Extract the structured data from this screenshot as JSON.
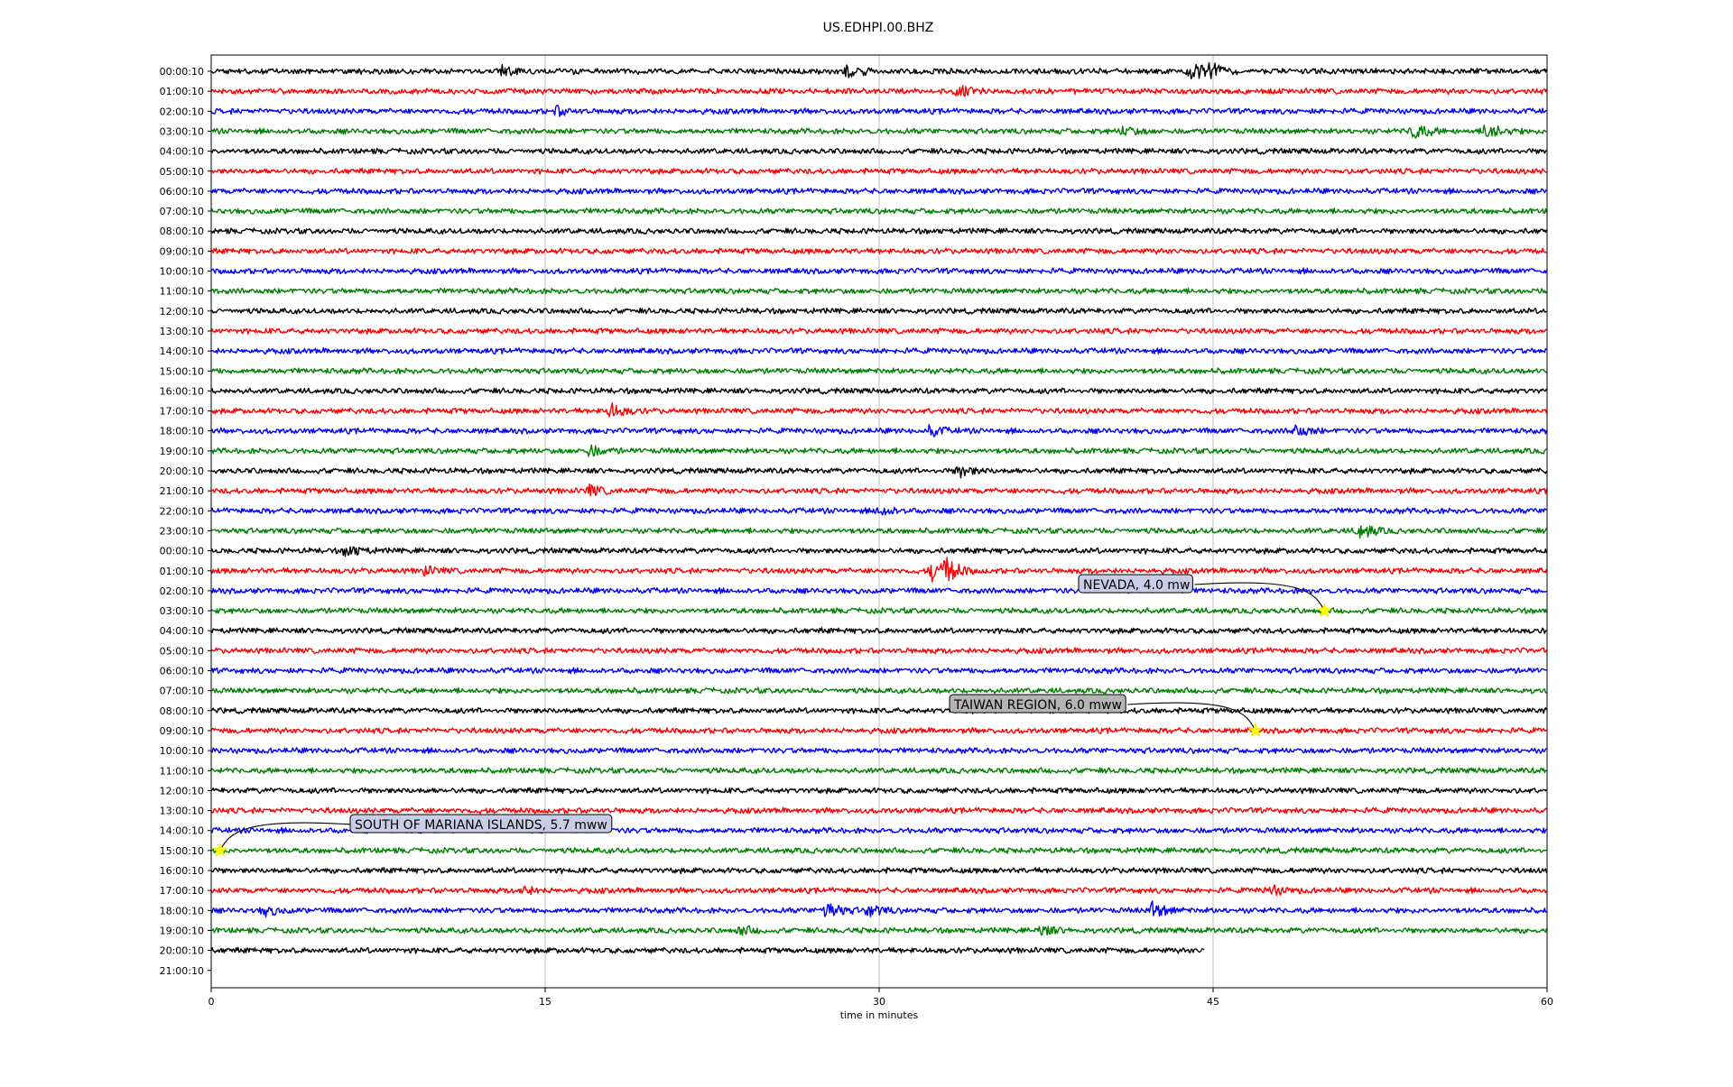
{
  "chart_data": {
    "type": "line",
    "title": "US.EDHPI.00.BHZ",
    "xlabel": "time in minutes",
    "ylabel": "",
    "xlim": [
      0,
      60
    ],
    "x_ticks": [
      0,
      15,
      30,
      45,
      60
    ],
    "grid": "vertical",
    "trace_colors": [
      "#000000",
      "#ff0000",
      "#0000ff",
      "#008000"
    ],
    "row_labels": [
      "00:00:10",
      "01:00:10",
      "02:00:10",
      "03:00:10",
      "04:00:10",
      "05:00:10",
      "06:00:10",
      "07:00:10",
      "08:00:10",
      "09:00:10",
      "10:00:10",
      "11:00:10",
      "12:00:10",
      "13:00:10",
      "14:00:10",
      "15:00:10",
      "16:00:10",
      "17:00:10",
      "18:00:10",
      "19:00:10",
      "20:00:10",
      "21:00:10",
      "22:00:10",
      "23:00:10",
      "00:00:10",
      "01:00:10",
      "02:00:10",
      "03:00:10",
      "04:00:10",
      "05:00:10",
      "06:00:10",
      "07:00:10",
      "08:00:10",
      "09:00:10",
      "10:00:10",
      "11:00:10",
      "12:00:10",
      "13:00:10",
      "14:00:10",
      "15:00:10",
      "16:00:10",
      "17:00:10",
      "18:00:10",
      "19:00:10",
      "20:00:10",
      "21:00:10"
    ],
    "last_trace_end_minute": 44.6,
    "events": [
      {
        "label": "NEVADA, 4.0 mw",
        "row": 27,
        "minute": 50.0
      },
      {
        "label": "TAIWAN REGION, 6.0 mww",
        "row": 33,
        "minute": 46.9
      },
      {
        "label": "SOUTH OF MARIANA ISLANDS, 5.7 mww",
        "row": 39,
        "minute": 0.4
      }
    ],
    "annotation_box_colors": [
      "#c8cde6",
      "#b4b4b4",
      "#c8cde6"
    ],
    "marker_color": "#ffff00",
    "bursts": [
      {
        "row": 0,
        "minute": 28.6,
        "amp": 0.7
      },
      {
        "row": 0,
        "minute": 44.0,
        "amp": 1.0
      },
      {
        "row": 0,
        "minute": 44.9,
        "amp": 0.8
      },
      {
        "row": 0,
        "minute": 13.0,
        "amp": 0.5
      },
      {
        "row": 1,
        "minute": 33.5,
        "amp": 0.5
      },
      {
        "row": 2,
        "minute": 15.5,
        "amp": 0.4
      },
      {
        "row": 3,
        "minute": 41.0,
        "amp": 0.5
      },
      {
        "row": 3,
        "minute": 54.0,
        "amp": 0.9
      },
      {
        "row": 3,
        "minute": 57.3,
        "amp": 1.0
      },
      {
        "row": 17,
        "minute": 17.9,
        "amp": 0.8
      },
      {
        "row": 18,
        "minute": 32.3,
        "amp": 0.5
      },
      {
        "row": 18,
        "minute": 48.7,
        "amp": 0.6
      },
      {
        "row": 19,
        "minute": 17.0,
        "amp": 0.5
      },
      {
        "row": 20,
        "minute": 33.6,
        "amp": 0.6
      },
      {
        "row": 21,
        "minute": 17.0,
        "amp": 0.5
      },
      {
        "row": 22,
        "minute": 30.0,
        "amp": 0.5
      },
      {
        "row": 23,
        "minute": 51.6,
        "amp": 0.8
      },
      {
        "row": 24,
        "minute": 6.1,
        "amp": 0.6
      },
      {
        "row": 25,
        "minute": 32.4,
        "amp": 1.0
      },
      {
        "row": 25,
        "minute": 33.0,
        "amp": 1.0
      },
      {
        "row": 25,
        "minute": 9.6,
        "amp": 0.4
      },
      {
        "row": 41,
        "minute": 14.0,
        "amp": 0.4
      },
      {
        "row": 41,
        "minute": 47.5,
        "amp": 0.6
      },
      {
        "row": 42,
        "minute": 27.6,
        "amp": 1.0
      },
      {
        "row": 42,
        "minute": 29.5,
        "amp": 0.6
      },
      {
        "row": 42,
        "minute": 42.3,
        "amp": 0.8
      },
      {
        "row": 42,
        "minute": 2.4,
        "amp": 0.5
      },
      {
        "row": 43,
        "minute": 37.3,
        "amp": 0.5
      },
      {
        "row": 43,
        "minute": 23.8,
        "amp": 0.4
      }
    ]
  }
}
